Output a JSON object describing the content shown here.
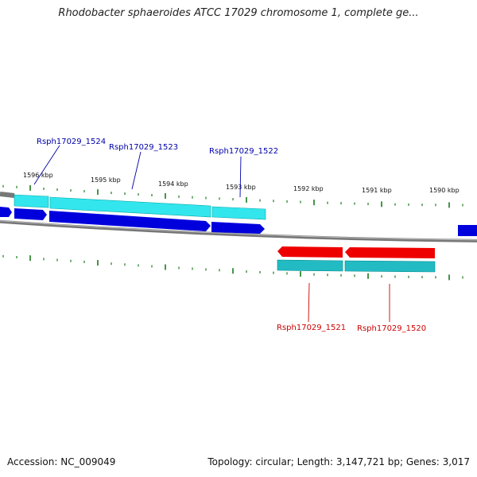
{
  "title": "Rhodobacter sphaeroides ATCC 17029 chromosome 1, complete ge...",
  "footer": {
    "accession": "Accession: NC_009049",
    "summary": "Topology: circular; Length: 3,147,721 bp; Genes: 3,017"
  },
  "colors": {
    "forward_gene": "#0000dd",
    "forward_cds": "#33e6ee",
    "reverse_gene": "#ee0000",
    "reverse_cds": "#22bbc4",
    "forward_label": "#0000aa",
    "reverse_label": "#cc0000",
    "tick": "#1a7a1a",
    "backbone": "#888888"
  },
  "ticks": [
    {
      "label": "1596 kbp"
    },
    {
      "label": "1595 kbp"
    },
    {
      "label": "1594 kbp"
    },
    {
      "label": "1593 kbp"
    },
    {
      "label": "1592 kbp"
    },
    {
      "label": "1591 kbp"
    },
    {
      "label": "1590 kbp"
    }
  ],
  "genes": [
    {
      "label": "Rsph17029_1524",
      "strand": "+"
    },
    {
      "label": "Rsph17029_1523",
      "strand": "+"
    },
    {
      "label": "Rsph17029_1522",
      "strand": "+"
    },
    {
      "label": "Rsph17029_1521",
      "strand": "-"
    },
    {
      "label": "Rsph17029_1520",
      "strand": "-"
    }
  ]
}
